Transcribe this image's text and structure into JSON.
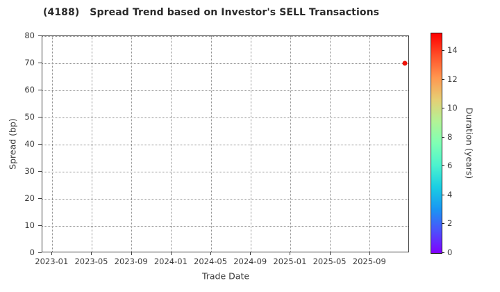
{
  "chart_data": {
    "type": "scatter",
    "title": "(4188)   Spread Trend based on Investor's SELL Transactions",
    "xlabel": "Trade Date",
    "ylabel": "Spread (bp)",
    "x_tick_labels": [
      "2023-01",
      "2023-05",
      "2023-09",
      "2024-01",
      "2024-05",
      "2024-09",
      "2025-01",
      "2025-05",
      "2025-09"
    ],
    "y_ticks": [
      0,
      10,
      20,
      30,
      40,
      50,
      60,
      70,
      80
    ],
    "ylim": [
      0,
      80
    ],
    "xlim": [
      "2022-12",
      "2026-01"
    ],
    "grid": true,
    "grid_style": "dotted",
    "legend": "none",
    "points": [
      {
        "trade_date": "2025-12",
        "spread_bp": 70,
        "duration_years": 15,
        "color": "#ee1409"
      }
    ],
    "colorbar": {
      "label": "Duration (years)",
      "ticks": [
        0,
        2,
        4,
        6,
        8,
        10,
        12,
        14
      ],
      "vmin": 0,
      "vmax": 15.2,
      "colormap": "rainbow",
      "gradient_bottom_to_top": [
        "#8000ff",
        "#4d4ffc",
        "#1a96f3",
        "#1acee3",
        "#4df3ce",
        "#80ffb4",
        "#b3f396",
        "#e6ce74",
        "#ff964f",
        "#ff4f28",
        "#ff0000"
      ]
    },
    "colors": {
      "background": "#ffffff",
      "grid": "#8f8f8f",
      "spine": "#3f3f3f",
      "text": "#3a3a3a",
      "title_text": "#2a2a2a"
    }
  }
}
